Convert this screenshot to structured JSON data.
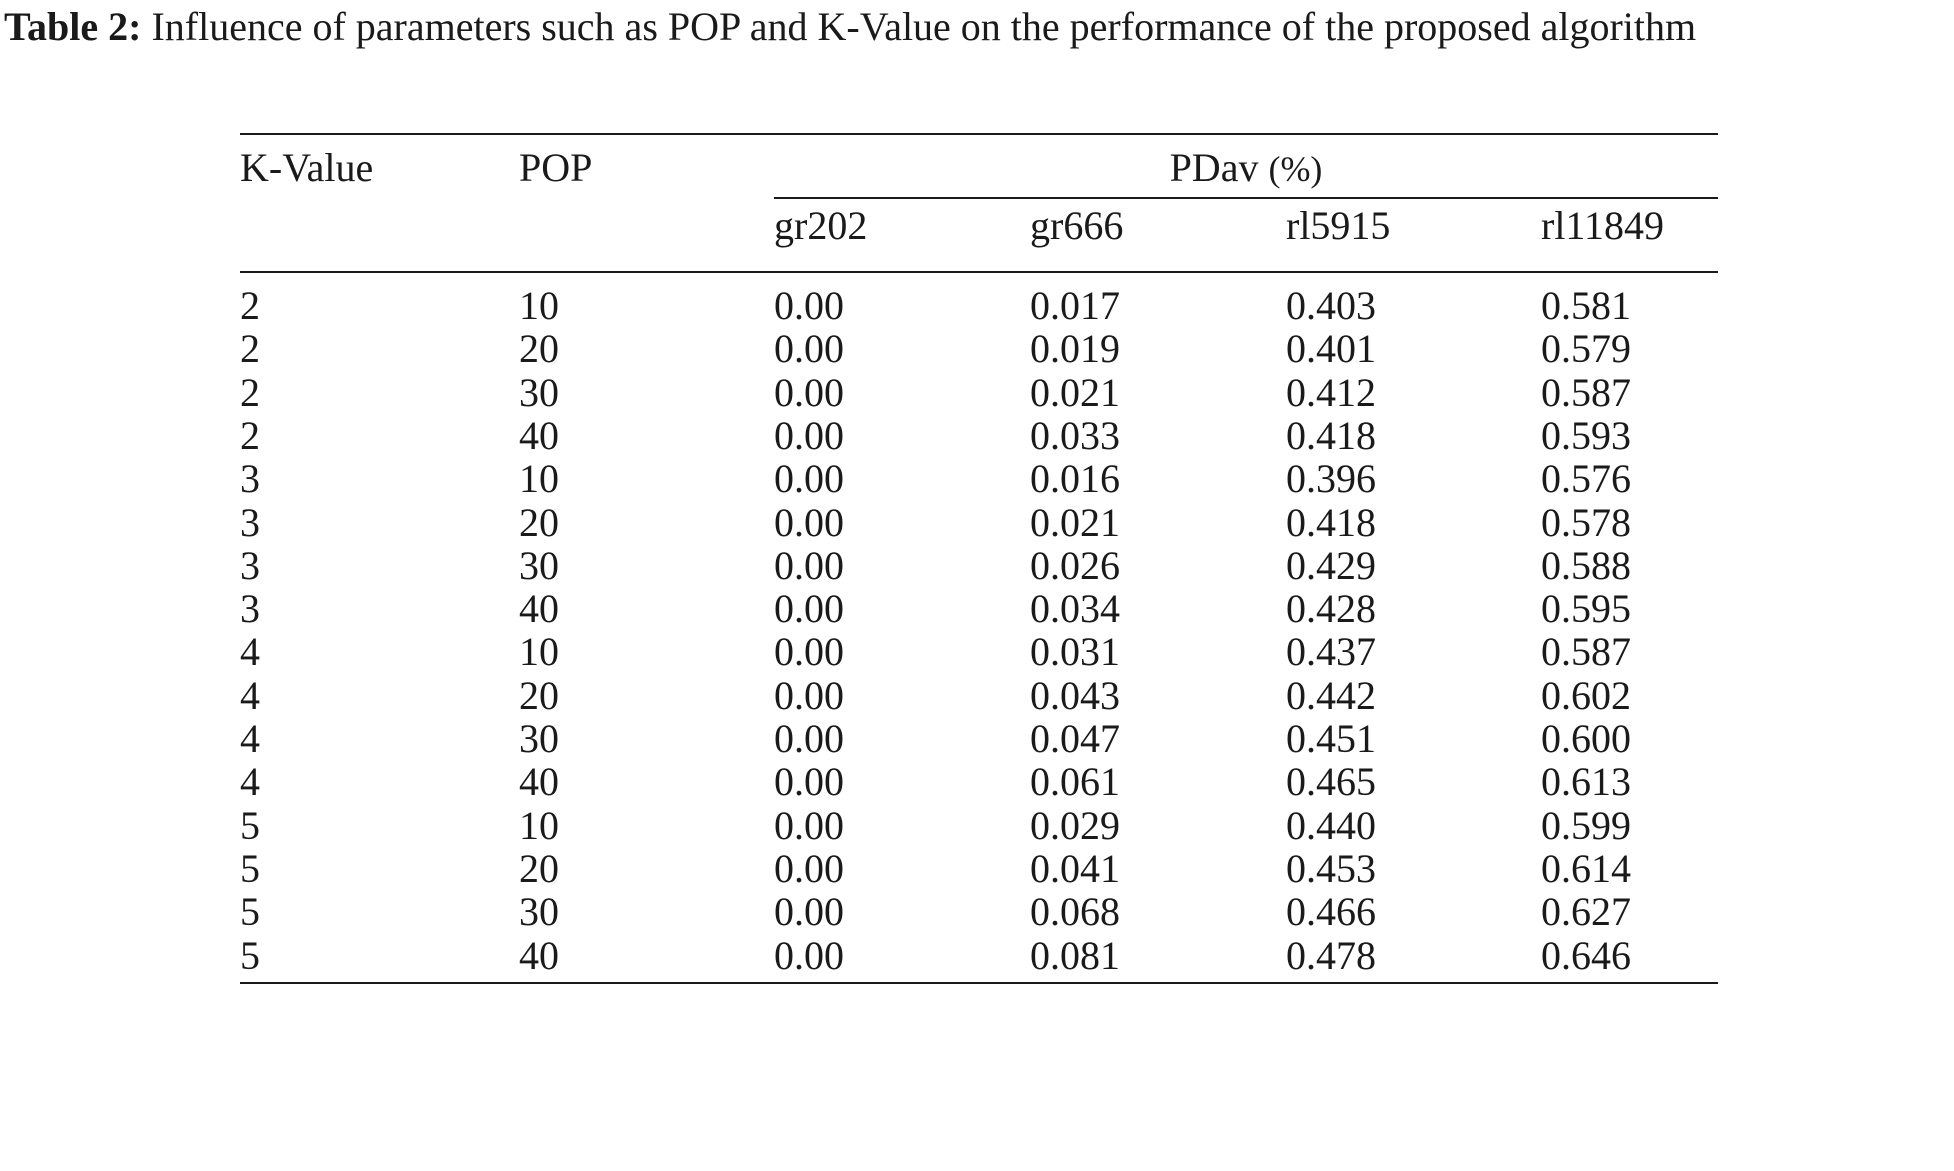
{
  "caption": {
    "label": "Table 2:",
    "text": "Influence of parameters such as POP and K-Value on the performance of the proposed algorithm"
  },
  "table": {
    "headers": {
      "k_value": "K-Value",
      "pop": "POP",
      "group": "PDav",
      "group_unit": "(%)",
      "columns": [
        "gr202",
        "gr666",
        "rl5915",
        "rl11849"
      ]
    },
    "rows": [
      [
        "2",
        "10",
        "0.00",
        "0.017",
        "0.403",
        "0.581"
      ],
      [
        "2",
        "20",
        "0.00",
        "0.019",
        "0.401",
        "0.579"
      ],
      [
        "2",
        "30",
        "0.00",
        "0.021",
        "0.412",
        "0.587"
      ],
      [
        "2",
        "40",
        "0.00",
        "0.033",
        "0.418",
        "0.593"
      ],
      [
        "3",
        "10",
        "0.00",
        "0.016",
        "0.396",
        "0.576"
      ],
      [
        "3",
        "20",
        "0.00",
        "0.021",
        "0.418",
        "0.578"
      ],
      [
        "3",
        "30",
        "0.00",
        "0.026",
        "0.429",
        "0.588"
      ],
      [
        "3",
        "40",
        "0.00",
        "0.034",
        "0.428",
        "0.595"
      ],
      [
        "4",
        "10",
        "0.00",
        "0.031",
        "0.437",
        "0.587"
      ],
      [
        "4",
        "20",
        "0.00",
        "0.043",
        "0.442",
        "0.602"
      ],
      [
        "4",
        "30",
        "0.00",
        "0.047",
        "0.451",
        "0.600"
      ],
      [
        "4",
        "40",
        "0.00",
        "0.061",
        "0.465",
        "0.613"
      ],
      [
        "5",
        "10",
        "0.00",
        "0.029",
        "0.440",
        "0.599"
      ],
      [
        "5",
        "20",
        "0.00",
        "0.041",
        "0.453",
        "0.614"
      ],
      [
        "5",
        "30",
        "0.00",
        "0.068",
        "0.466",
        "0.627"
      ],
      [
        "5",
        "40",
        "0.00",
        "0.081",
        "0.478",
        "0.646"
      ]
    ]
  }
}
